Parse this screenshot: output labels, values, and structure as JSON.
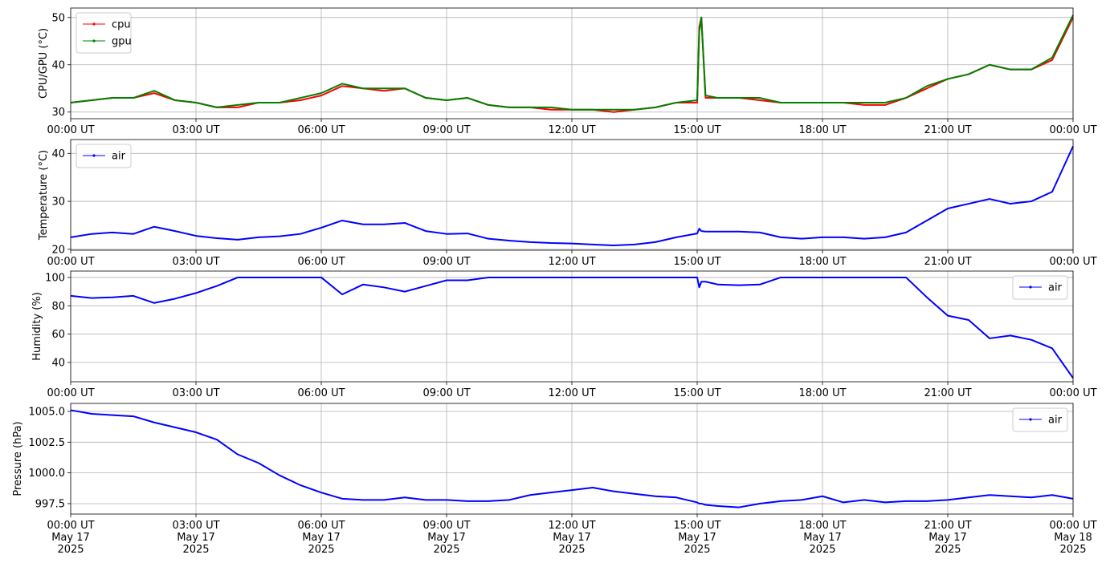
{
  "chart_data": [
    {
      "type": "line",
      "y_label": "CPU/GPU (°C)",
      "grid": true,
      "legend": "upper left",
      "x": [
        "2025-05-17T00:00",
        "2025-05-17T00:30",
        "2025-05-17T01:00",
        "2025-05-17T01:30",
        "2025-05-17T02:00",
        "2025-05-17T02:30",
        "2025-05-17T03:00",
        "2025-05-17T03:30",
        "2025-05-17T04:00",
        "2025-05-17T04:30",
        "2025-05-17T05:00",
        "2025-05-17T05:30",
        "2025-05-17T06:00",
        "2025-05-17T06:30",
        "2025-05-17T07:00",
        "2025-05-17T07:30",
        "2025-05-17T08:00",
        "2025-05-17T08:30",
        "2025-05-17T09:00",
        "2025-05-17T09:30",
        "2025-05-17T10:00",
        "2025-05-17T10:30",
        "2025-05-17T11:00",
        "2025-05-17T11:30",
        "2025-05-17T12:00",
        "2025-05-17T12:30",
        "2025-05-17T13:00",
        "2025-05-17T13:30",
        "2025-05-17T14:00",
        "2025-05-17T14:30",
        "2025-05-17T15:00",
        "2025-05-17T15:03",
        "2025-05-17T15:06",
        "2025-05-17T15:12",
        "2025-05-17T15:30",
        "2025-05-17T16:00",
        "2025-05-17T16:30",
        "2025-05-17T17:00",
        "2025-05-17T17:30",
        "2025-05-17T18:00",
        "2025-05-17T18:30",
        "2025-05-17T19:00",
        "2025-05-17T19:30",
        "2025-05-17T20:00",
        "2025-05-17T20:30",
        "2025-05-17T21:00",
        "2025-05-17T21:30",
        "2025-05-17T22:00",
        "2025-05-17T22:30",
        "2025-05-17T23:00",
        "2025-05-17T23:30",
        "2025-05-18T00:00"
      ],
      "series": [
        {
          "name": "cpu",
          "color": "#ff0000",
          "values": [
            32,
            32.5,
            33,
            33,
            34,
            32.5,
            32,
            31,
            31,
            32,
            32,
            32.5,
            33.5,
            35.5,
            35,
            34.5,
            35,
            33,
            32.5,
            33,
            31.5,
            31,
            31,
            30.5,
            30.5,
            30.5,
            30,
            30.5,
            31,
            32,
            32,
            48,
            50,
            33,
            33,
            33,
            32.5,
            32,
            32,
            32,
            32,
            31.5,
            31.5,
            33,
            35,
            37,
            38,
            40,
            39,
            39,
            41,
            50
          ]
        },
        {
          "name": "gpu",
          "color": "#008000",
          "values": [
            32,
            32.5,
            33,
            33,
            34.5,
            32.5,
            32,
            31,
            31.5,
            32,
            32,
            33,
            34,
            36,
            35,
            35,
            35,
            33,
            32.5,
            33,
            31.5,
            31,
            31,
            31,
            30.5,
            30.5,
            30.5,
            30.5,
            31,
            32,
            32.5,
            47,
            50,
            33.5,
            33,
            33,
            33,
            32,
            32,
            32,
            32,
            32,
            32,
            33,
            35.5,
            37,
            38,
            40,
            39,
            39,
            41.5,
            50.5
          ]
        }
      ],
      "xlim": [
        "2025-05-17T00:00",
        "2025-05-18T00:00"
      ],
      "xticks": [
        {
          "value": "2025-05-17T00:00",
          "label": "00:00 UT"
        },
        {
          "value": "2025-05-17T03:00",
          "label": "03:00 UT"
        },
        {
          "value": "2025-05-17T06:00",
          "label": "06:00 UT"
        },
        {
          "value": "2025-05-17T09:00",
          "label": "09:00 UT"
        },
        {
          "value": "2025-05-17T12:00",
          "label": "12:00 UT"
        },
        {
          "value": "2025-05-17T15:00",
          "label": "15:00 UT"
        },
        {
          "value": "2025-05-17T18:00",
          "label": "18:00 UT"
        },
        {
          "value": "2025-05-17T21:00",
          "label": "21:00 UT"
        },
        {
          "value": "2025-05-18T00:00",
          "label": "00:00 UT"
        }
      ],
      "ylim": [
        28.6,
        52.0
      ],
      "yticks": [
        30,
        40,
        50
      ]
    },
    {
      "type": "line",
      "y_label": "Temperature (°C)",
      "grid": true,
      "legend": "upper left",
      "x": [
        "2025-05-17T00:00",
        "2025-05-17T00:30",
        "2025-05-17T01:00",
        "2025-05-17T01:30",
        "2025-05-17T02:00",
        "2025-05-17T02:30",
        "2025-05-17T03:00",
        "2025-05-17T03:30",
        "2025-05-17T04:00",
        "2025-05-17T04:30",
        "2025-05-17T05:00",
        "2025-05-17T05:30",
        "2025-05-17T06:00",
        "2025-05-17T06:30",
        "2025-05-17T07:00",
        "2025-05-17T07:30",
        "2025-05-17T08:00",
        "2025-05-17T08:30",
        "2025-05-17T09:00",
        "2025-05-17T09:30",
        "2025-05-17T10:00",
        "2025-05-17T10:30",
        "2025-05-17T11:00",
        "2025-05-17T11:30",
        "2025-05-17T12:00",
        "2025-05-17T12:30",
        "2025-05-17T13:00",
        "2025-05-17T13:30",
        "2025-05-17T14:00",
        "2025-05-17T14:30",
        "2025-05-17T15:00",
        "2025-05-17T15:03",
        "2025-05-17T15:06",
        "2025-05-17T15:12",
        "2025-05-17T15:30",
        "2025-05-17T16:00",
        "2025-05-17T16:30",
        "2025-05-17T17:00",
        "2025-05-17T17:30",
        "2025-05-17T18:00",
        "2025-05-17T18:30",
        "2025-05-17T19:00",
        "2025-05-17T19:30",
        "2025-05-17T20:00",
        "2025-05-17T20:30",
        "2025-05-17T21:00",
        "2025-05-17T21:30",
        "2025-05-17T22:00",
        "2025-05-17T22:30",
        "2025-05-17T23:00",
        "2025-05-17T23:30",
        "2025-05-18T00:00"
      ],
      "series": [
        {
          "name": "air",
          "color": "#0000ff",
          "values": [
            22.5,
            23.2,
            23.5,
            23.2,
            24.7,
            23.8,
            22.8,
            22.3,
            22,
            22.5,
            22.7,
            23.2,
            24.5,
            26,
            25.2,
            25.2,
            25.5,
            23.8,
            23.2,
            23.3,
            22.2,
            21.8,
            21.5,
            21.3,
            21.2,
            21,
            20.8,
            21,
            21.5,
            22.5,
            23.3,
            24.3,
            23.8,
            23.7,
            23.7,
            23.7,
            23.5,
            22.5,
            22.2,
            22.5,
            22.5,
            22.2,
            22.5,
            23.5,
            26,
            28.5,
            29.5,
            30.5,
            29.5,
            30,
            32,
            41.5
          ]
        }
      ],
      "xlim": [
        "2025-05-17T00:00",
        "2025-05-18T00:00"
      ],
      "xticks": [
        {
          "value": "2025-05-17T00:00",
          "label": "00:00 UT"
        },
        {
          "value": "2025-05-17T03:00",
          "label": "03:00 UT"
        },
        {
          "value": "2025-05-17T06:00",
          "label": "06:00 UT"
        },
        {
          "value": "2025-05-17T09:00",
          "label": "09:00 UT"
        },
        {
          "value": "2025-05-17T12:00",
          "label": "12:00 UT"
        },
        {
          "value": "2025-05-17T15:00",
          "label": "15:00 UT"
        },
        {
          "value": "2025-05-17T18:00",
          "label": "18:00 UT"
        },
        {
          "value": "2025-05-17T21:00",
          "label": "21:00 UT"
        },
        {
          "value": "2025-05-18T00:00",
          "label": "00:00 UT"
        }
      ],
      "ylim": [
        19.8,
        42.9
      ],
      "yticks": [
        20,
        30,
        40
      ]
    },
    {
      "type": "line",
      "y_label": "Humidity (%)",
      "grid": true,
      "legend": "upper right",
      "x": [
        "2025-05-17T00:00",
        "2025-05-17T00:30",
        "2025-05-17T01:00",
        "2025-05-17T01:30",
        "2025-05-17T02:00",
        "2025-05-17T02:30",
        "2025-05-17T03:00",
        "2025-05-17T03:30",
        "2025-05-17T04:00",
        "2025-05-17T04:30",
        "2025-05-17T05:00",
        "2025-05-17T05:30",
        "2025-05-17T06:00",
        "2025-05-17T06:30",
        "2025-05-17T07:00",
        "2025-05-17T07:30",
        "2025-05-17T08:00",
        "2025-05-17T08:30",
        "2025-05-17T09:00",
        "2025-05-17T09:30",
        "2025-05-17T10:00",
        "2025-05-17T10:30",
        "2025-05-17T11:00",
        "2025-05-17T11:30",
        "2025-05-17T12:00",
        "2025-05-17T12:30",
        "2025-05-17T13:00",
        "2025-05-17T13:30",
        "2025-05-17T14:00",
        "2025-05-17T14:30",
        "2025-05-17T15:00",
        "2025-05-17T15:03",
        "2025-05-17T15:06",
        "2025-05-17T15:12",
        "2025-05-17T15:30",
        "2025-05-17T16:00",
        "2025-05-17T16:30",
        "2025-05-17T17:00",
        "2025-05-17T17:30",
        "2025-05-17T18:00",
        "2025-05-17T18:30",
        "2025-05-17T19:00",
        "2025-05-17T19:30",
        "2025-05-17T20:00",
        "2025-05-17T20:30",
        "2025-05-17T21:00",
        "2025-05-17T21:30",
        "2025-05-17T22:00",
        "2025-05-17T22:30",
        "2025-05-17T23:00",
        "2025-05-17T23:30",
        "2025-05-18T00:00"
      ],
      "series": [
        {
          "name": "air",
          "color": "#0000ff",
          "values": [
            87,
            85.5,
            86,
            87,
            82,
            85,
            89,
            94,
            100,
            100,
            100,
            100,
            100,
            88,
            95,
            93,
            90,
            94,
            98,
            98,
            100,
            100,
            100,
            100,
            100,
            100,
            100,
            100,
            100,
            100,
            100,
            93,
            97,
            97,
            95,
            94.5,
            95,
            100,
            100,
            100,
            100,
            100,
            100,
            100,
            86,
            73,
            70,
            57,
            59,
            56,
            50,
            29
          ]
        }
      ],
      "xlim": [
        "2025-05-17T00:00",
        "2025-05-18T00:00"
      ],
      "xticks": [
        {
          "value": "2025-05-17T00:00",
          "label": "00:00 UT"
        },
        {
          "value": "2025-05-17T03:00",
          "label": "03:00 UT"
        },
        {
          "value": "2025-05-17T06:00",
          "label": "06:00 UT"
        },
        {
          "value": "2025-05-17T09:00",
          "label": "09:00 UT"
        },
        {
          "value": "2025-05-17T12:00",
          "label": "12:00 UT"
        },
        {
          "value": "2025-05-17T15:00",
          "label": "15:00 UT"
        },
        {
          "value": "2025-05-17T18:00",
          "label": "18:00 UT"
        },
        {
          "value": "2025-05-17T21:00",
          "label": "21:00 UT"
        },
        {
          "value": "2025-05-18T00:00",
          "label": "00:00 UT"
        }
      ],
      "ylim": [
        26.4,
        104.5
      ],
      "yticks": [
        40,
        60,
        80,
        100
      ]
    },
    {
      "type": "line",
      "y_label": "Pressure (hPa)",
      "grid": true,
      "legend": "upper right",
      "x": [
        "2025-05-17T00:00",
        "2025-05-17T00:30",
        "2025-05-17T01:00",
        "2025-05-17T01:30",
        "2025-05-17T02:00",
        "2025-05-17T02:30",
        "2025-05-17T03:00",
        "2025-05-17T03:30",
        "2025-05-17T04:00",
        "2025-05-17T04:30",
        "2025-05-17T05:00",
        "2025-05-17T05:30",
        "2025-05-17T06:00",
        "2025-05-17T06:30",
        "2025-05-17T07:00",
        "2025-05-17T07:30",
        "2025-05-17T08:00",
        "2025-05-17T08:30",
        "2025-05-17T09:00",
        "2025-05-17T09:30",
        "2025-05-17T10:00",
        "2025-05-17T10:30",
        "2025-05-17T11:00",
        "2025-05-17T11:30",
        "2025-05-17T12:00",
        "2025-05-17T12:30",
        "2025-05-17T13:00",
        "2025-05-17T13:30",
        "2025-05-17T14:00",
        "2025-05-17T14:30",
        "2025-05-17T15:00",
        "2025-05-17T15:03",
        "2025-05-17T15:06",
        "2025-05-17T15:12",
        "2025-05-17T15:30",
        "2025-05-17T16:00",
        "2025-05-17T16:30",
        "2025-05-17T17:00",
        "2025-05-17T17:30",
        "2025-05-17T18:00",
        "2025-05-17T18:30",
        "2025-05-17T19:00",
        "2025-05-17T19:30",
        "2025-05-17T20:00",
        "2025-05-17T20:30",
        "2025-05-17T21:00",
        "2025-05-17T21:30",
        "2025-05-17T22:00",
        "2025-05-17T22:30",
        "2025-05-17T23:00",
        "2025-05-17T23:30",
        "2025-05-18T00:00"
      ],
      "series": [
        {
          "name": "air",
          "color": "#0000ff",
          "values": [
            1005.1,
            1004.8,
            1004.7,
            1004.6,
            1004.1,
            1003.7,
            1003.3,
            1002.7,
            1001.5,
            1000.8,
            999.8,
            999.0,
            998.4,
            997.9,
            997.8,
            997.8,
            998.0,
            997.8,
            997.8,
            997.7,
            997.7,
            997.8,
            998.2,
            998.4,
            998.6,
            998.8,
            998.5,
            998.3,
            998.1,
            998.0,
            997.6,
            997.5,
            997.5,
            997.4,
            997.3,
            997.2,
            997.5,
            997.7,
            997.8,
            998.1,
            997.6,
            997.8,
            997.6,
            997.7,
            997.7,
            997.8,
            998.0,
            998.2,
            998.1,
            998.0,
            998.2,
            997.9
          ]
        }
      ],
      "xlim": [
        "2025-05-17T00:00",
        "2025-05-18T00:00"
      ],
      "xticks": [
        {
          "value": "2025-05-17T00:00",
          "label": "00:00 UT\nMay 17\n2025"
        },
        {
          "value": "2025-05-17T03:00",
          "label": "03:00 UT\nMay 17\n2025"
        },
        {
          "value": "2025-05-17T06:00",
          "label": "06:00 UT\nMay 17\n2025"
        },
        {
          "value": "2025-05-17T09:00",
          "label": "09:00 UT\nMay 17\n2025"
        },
        {
          "value": "2025-05-17T12:00",
          "label": "12:00 UT\nMay 17\n2025"
        },
        {
          "value": "2025-05-17T15:00",
          "label": "15:00 UT\nMay 17\n2025"
        },
        {
          "value": "2025-05-17T18:00",
          "label": "18:00 UT\nMay 17\n2025"
        },
        {
          "value": "2025-05-17T21:00",
          "label": "21:00 UT\nMay 17\n2025"
        },
        {
          "value": "2025-05-18T00:00",
          "label": "00:00 UT\nMay 18\n2025"
        }
      ],
      "ylim": [
        996.65,
        1005.65
      ],
      "yticks": [
        {
          "value": 997.5,
          "label": "997.5"
        },
        {
          "value": 1000,
          "label": "1000.0"
        },
        {
          "value": 1002.5,
          "label": "1002.5"
        },
        {
          "value": 1005,
          "label": "1005.0"
        }
      ]
    }
  ]
}
